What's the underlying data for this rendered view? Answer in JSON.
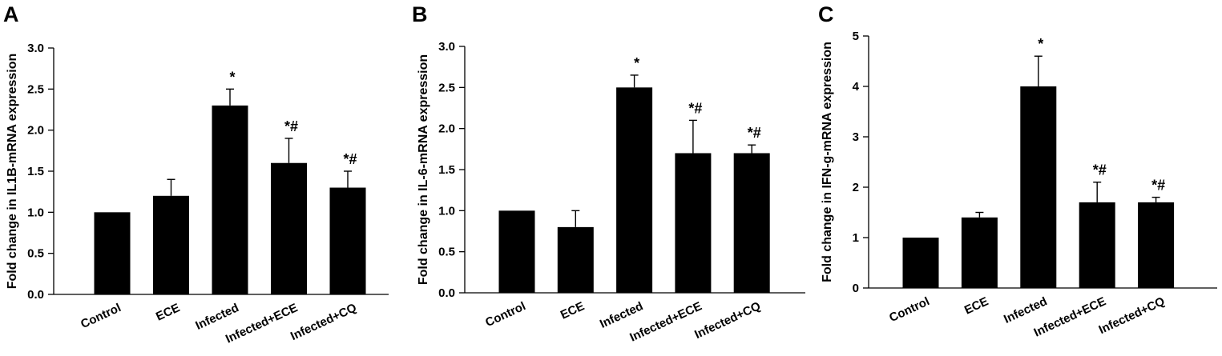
{
  "chart_data": [
    {
      "type": "bar",
      "panel": "A",
      "title": "",
      "xlabel": "",
      "ylabel": "Fold change in IL1B-mRNA expression",
      "ylim": [
        0,
        3.0
      ],
      "yticks": [
        "0.0",
        "0.5",
        "1.0",
        "1.5",
        "2.0",
        "2.5",
        "3.0"
      ],
      "categories": [
        "Control",
        "ECE",
        "Infected",
        "Infected+ECE",
        "Infected+CQ"
      ],
      "values": [
        1.0,
        1.2,
        2.3,
        1.6,
        1.3
      ],
      "errors": [
        0,
        0.2,
        0.2,
        0.3,
        0.2
      ],
      "annotations": [
        "",
        "",
        "*",
        "*#",
        "*#"
      ],
      "colors": {
        "bar": "#000000"
      }
    },
    {
      "type": "bar",
      "panel": "B",
      "title": "",
      "xlabel": "",
      "ylabel": "Fold change in IL-6-mRNA expression",
      "ylim": [
        0,
        3.0
      ],
      "yticks": [
        "0.0",
        "0.5",
        "1.0",
        "1.5",
        "2.0",
        "2.5",
        "3.0"
      ],
      "categories": [
        "Control",
        "ECE",
        "Infected",
        "Infected+ECE",
        "Infected+CQ"
      ],
      "values": [
        1.0,
        0.8,
        2.5,
        1.7,
        1.7
      ],
      "errors": [
        0,
        0.2,
        0.15,
        0.4,
        0.1
      ],
      "annotations": [
        "",
        "",
        "*",
        "*#",
        "*#"
      ],
      "colors": {
        "bar": "#000000"
      }
    },
    {
      "type": "bar",
      "panel": "C",
      "title": "",
      "xlabel": "",
      "ylabel": "Fold change in IFN-g-mRNA expression",
      "ylim": [
        0,
        5
      ],
      "yticks": [
        "0",
        "1",
        "2",
        "3",
        "4",
        "5"
      ],
      "categories": [
        "Control",
        "ECE",
        "Infected",
        "Infected+ECE",
        "Infected+CQ"
      ],
      "values": [
        1.0,
        1.4,
        4.0,
        1.7,
        1.7
      ],
      "errors": [
        0,
        0.1,
        0.6,
        0.4,
        0.1
      ],
      "annotations": [
        "",
        "",
        "*",
        "*#",
        "*#"
      ],
      "colors": {
        "bar": "#000000"
      }
    }
  ]
}
